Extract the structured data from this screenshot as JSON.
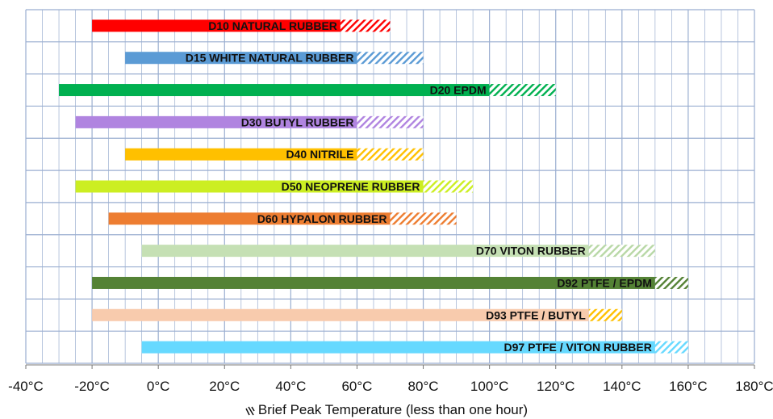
{
  "chart_data": {
    "type": "bar",
    "subtype": "floating-range",
    "xlim": [
      -40,
      180
    ],
    "x_ticks": [
      -40,
      -20,
      0,
      20,
      40,
      60,
      80,
      100,
      120,
      140,
      160,
      180
    ],
    "x_tick_labels": [
      "-40°C",
      "-20°C",
      "0°C",
      "20°C",
      "40°C",
      "60°C",
      "80°C",
      "100°C",
      "120°C",
      "140°C",
      "160°C",
      "180°C"
    ],
    "grid": true,
    "minor_grid_step": 5,
    "legend": {
      "placement": "bottom",
      "label": "Brief Peak Temperature (less than one hour)"
    },
    "series": [
      {
        "name": "D10 NATURAL RUBBER",
        "min": -20,
        "max": 55,
        "peak": 70,
        "color": "#ff0000"
      },
      {
        "name": "D15 WHITE NATURAL RUBBER",
        "min": -10,
        "max": 60,
        "peak": 80,
        "color": "#5b9bd5"
      },
      {
        "name": "D20 EPDM",
        "min": -30,
        "max": 100,
        "peak": 120,
        "color": "#00b050"
      },
      {
        "name": "D30 BUTYL RUBBER",
        "min": -25,
        "max": 60,
        "peak": 80,
        "color": "#b084e0"
      },
      {
        "name": "D40 NITRILE",
        "min": -10,
        "max": 60,
        "peak": 80,
        "color": "#ffc000"
      },
      {
        "name": "D50 NEOPRENE RUBBER",
        "min": -25,
        "max": 80,
        "peak": 95,
        "color": "#ccee22"
      },
      {
        "name": "D60 HYPALON RUBBER",
        "min": -15,
        "max": 70,
        "peak": 90,
        "color": "#ed7d31"
      },
      {
        "name": "D70 VITON RUBBER",
        "min": -5,
        "max": 130,
        "peak": 150,
        "color": "#c5e0b4"
      },
      {
        "name": "D92 PTFE / EPDM",
        "min": -20,
        "max": 150,
        "peak": 160,
        "color": "#548235"
      },
      {
        "name": "D93 PTFE / BUTYL",
        "min": -20,
        "max": 130,
        "peak": 140,
        "color": "#f8cbad"
      },
      {
        "name": "D97 PTFE / VITON RUBBER",
        "min": -5,
        "max": 150,
        "peak": 160,
        "color": "#66d9ff"
      }
    ],
    "colors": {
      "grid": "#9aaed0",
      "axis": "#777777",
      "label_text": "#111111",
      "hatch": {
        "D10 NATURAL RUBBER": "#ff0000",
        "D15 WHITE NATURAL RUBBER": "#5b9bd5",
        "D20 EPDM": "#00b050",
        "D30 BUTYL RUBBER": "#b084e0",
        "D40 NITRILE": "#ffc000",
        "D50 NEOPRENE RUBBER": "#ccee22",
        "D60 HYPALON RUBBER": "#ed7d31",
        "D70 VITON RUBBER": "#b8d8a6",
        "D92 PTFE / EPDM": "#548235",
        "D93 PTFE / BUTYL": "#ffc000",
        "D97 PTFE / VITON RUBBER": "#66d9ff"
      }
    }
  }
}
